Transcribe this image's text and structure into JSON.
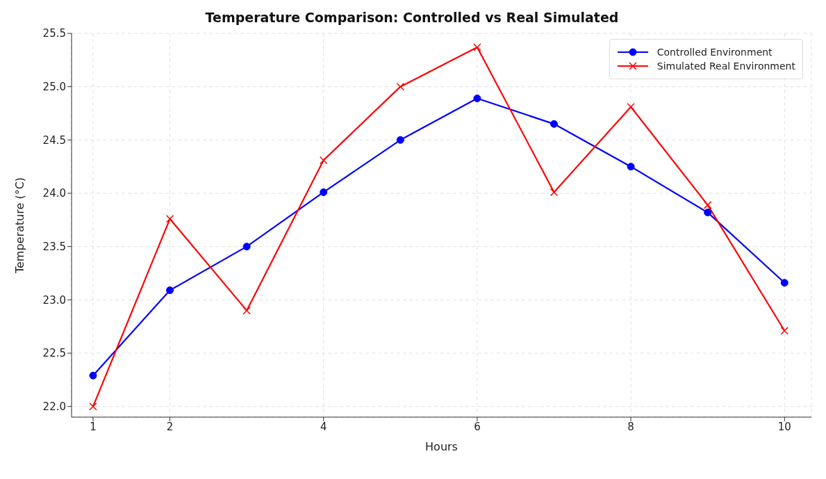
{
  "chart_data": {
    "type": "line",
    "title": "Temperature Comparison: Controlled vs Real Simulated",
    "xlabel": "Hours",
    "ylabel": "Temperature (°C)",
    "x": [
      1,
      2,
      3,
      4,
      5,
      6,
      7,
      8,
      9,
      10
    ],
    "series": [
      {
        "name": "Controlled Environment",
        "color": "#0000ff",
        "marker": "circle",
        "values": [
          22.29,
          23.09,
          23.5,
          24.01,
          24.5,
          24.89,
          24.65,
          24.25,
          23.82,
          23.16
        ]
      },
      {
        "name": "Simulated Real Environment",
        "color": "#ff0000",
        "marker": "cross",
        "values": [
          22.0,
          23.76,
          22.9,
          24.31,
          25.0,
          25.37,
          24.01,
          24.81,
          23.89,
          22.71
        ]
      }
    ],
    "xlim": [
      0.72,
      10.35
    ],
    "xticks": [
      1,
      2,
      4,
      6,
      8,
      10
    ],
    "ylim": [
      21.9,
      25.5
    ],
    "yticks": [
      {
        "value": 22,
        "label": "22.0"
      },
      22.5,
      {
        "value": 23,
        "label": "23.0"
      },
      23.5,
      {
        "value": 24,
        "label": "24.0"
      },
      24.5,
      {
        "value": 25,
        "label": "25.0"
      },
      25.5
    ],
    "grid": true,
    "legend": "top right"
  }
}
